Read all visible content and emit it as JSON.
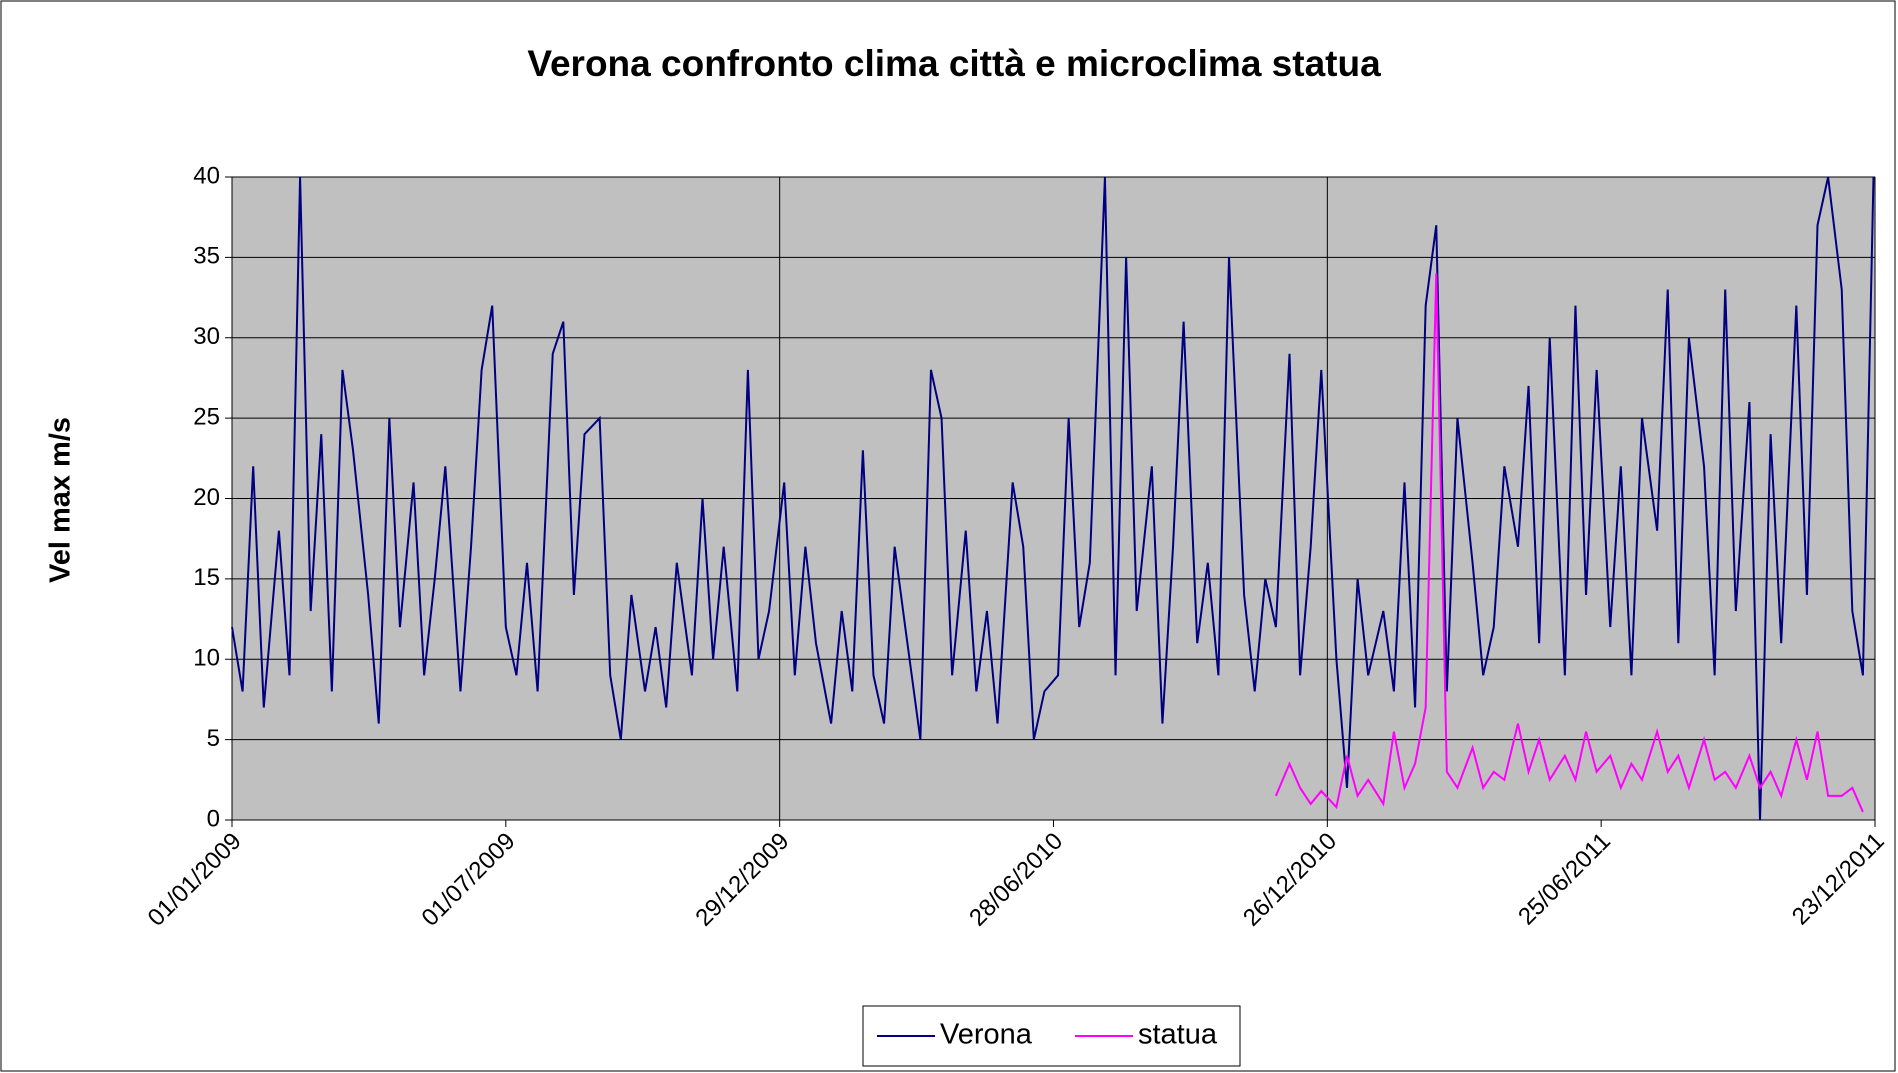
{
  "chart_data": {
    "type": "line",
    "title": "Verona confronto clima città e microclima statua",
    "y_label": "Vel max m/s",
    "xlim": [
      "01/01/2009",
      "23/12/2011"
    ],
    "xticks": [
      "01/01/2009",
      "01/07/2009",
      "29/12/2009",
      "28/06/2010",
      "26/12/2010",
      "25/06/2011",
      "23/12/2011"
    ],
    "ylim": [
      0,
      40
    ],
    "yticks": [
      0,
      5,
      10,
      15,
      20,
      25,
      30,
      35,
      40
    ],
    "grid": true,
    "legend": "bottom",
    "series": [
      {
        "name": "Verona",
        "color": "#000080",
        "x": [
          "01/01/2009",
          "08/01/2009",
          "15/01/2009",
          "22/01/2009",
          "01/02/2009",
          "08/02/2009",
          "15/02/2009",
          "22/02/2009",
          "01/03/2009",
          "08/03/2009",
          "15/03/2009",
          "22/03/2009",
          "01/04/2009",
          "08/04/2009",
          "15/04/2009",
          "22/04/2009",
          "01/05/2009",
          "08/05/2009",
          "15/05/2009",
          "22/05/2009",
          "01/06/2009",
          "08/06/2009",
          "15/06/2009",
          "22/06/2009",
          "01/07/2009",
          "08/07/2009",
          "15/07/2009",
          "22/07/2009",
          "01/08/2009",
          "08/08/2009",
          "15/08/2009",
          "22/08/2009",
          "01/09/2009",
          "08/09/2009",
          "15/09/2009",
          "22/09/2009",
          "01/10/2009",
          "08/10/2009",
          "15/10/2009",
          "22/10/2009",
          "01/11/2009",
          "08/11/2009",
          "15/11/2009",
          "22/11/2009",
          "01/12/2009",
          "08/12/2009",
          "15/12/2009",
          "22/12/2009",
          "01/01/2010",
          "08/01/2010",
          "15/01/2010",
          "22/01/2010",
          "01/02/2010",
          "08/02/2010",
          "15/02/2010",
          "22/02/2010",
          "01/03/2010",
          "08/03/2010",
          "15/03/2010",
          "22/03/2010",
          "01/04/2010",
          "08/04/2010",
          "15/04/2010",
          "22/04/2010",
          "01/05/2010",
          "08/05/2010",
          "15/05/2010",
          "22/05/2010",
          "01/06/2010",
          "08/06/2010",
          "15/06/2010",
          "22/06/2010",
          "01/07/2010",
          "08/07/2010",
          "15/07/2010",
          "22/07/2010",
          "01/08/2010",
          "08/08/2010",
          "15/08/2010",
          "22/08/2010",
          "01/09/2010",
          "08/09/2010",
          "15/09/2010",
          "22/09/2010",
          "01/10/2010",
          "08/10/2010",
          "15/10/2010",
          "22/10/2010",
          "01/11/2010",
          "08/11/2010",
          "15/11/2010",
          "22/11/2010",
          "01/12/2010",
          "08/12/2010",
          "15/12/2010",
          "22/12/2010",
          "01/01/2011",
          "08/01/2011",
          "15/01/2011",
          "22/01/2011",
          "01/02/2011",
          "08/02/2011",
          "15/02/2011",
          "22/02/2011",
          "01/03/2011",
          "08/03/2011",
          "15/03/2011",
          "22/03/2011",
          "01/04/2011",
          "08/04/2011",
          "15/04/2011",
          "22/04/2011",
          "01/05/2011",
          "08/05/2011",
          "15/05/2011",
          "22/05/2011",
          "01/06/2011",
          "08/06/2011",
          "15/06/2011",
          "22/06/2011",
          "01/07/2011",
          "08/07/2011",
          "15/07/2011",
          "22/07/2011",
          "01/08/2011",
          "08/08/2011",
          "15/08/2011",
          "22/08/2011",
          "01/09/2011",
          "08/09/2011",
          "15/09/2011",
          "22/09/2011",
          "01/10/2011",
          "08/10/2011",
          "15/10/2011",
          "22/10/2011",
          "01/11/2011",
          "08/11/2011",
          "15/11/2011",
          "22/11/2011",
          "01/12/2011",
          "08/12/2011",
          "15/12/2011",
          "22/12/2011"
        ],
        "values": [
          12,
          8,
          22,
          7,
          18,
          9,
          40,
          13,
          24,
          8,
          28,
          23,
          14,
          6,
          25,
          12,
          21,
          9,
          15,
          22,
          8,
          17,
          28,
          32,
          12,
          9,
          16,
          8,
          29,
          31,
          14,
          24,
          25,
          9,
          5,
          14,
          8,
          12,
          7,
          16,
          9,
          20,
          10,
          17,
          8,
          28,
          10,
          13,
          21,
          9,
          17,
          11,
          6,
          13,
          8,
          23,
          9,
          6,
          17,
          12,
          5,
          28,
          25,
          9,
          18,
          8,
          13,
          6,
          21,
          17,
          5,
          8,
          9,
          25,
          12,
          16,
          40,
          9,
          35,
          13,
          22,
          6,
          17,
          31,
          11,
          16,
          9,
          35,
          14,
          8,
          15,
          12,
          29,
          9,
          17,
          28,
          10,
          2,
          15,
          9,
          13,
          8,
          21,
          7,
          32,
          37,
          8,
          25,
          16,
          9,
          12,
          22,
          17,
          27,
          11,
          30,
          9,
          32,
          14,
          28,
          12,
          22,
          9,
          25,
          18,
          33,
          11,
          30,
          22,
          9,
          33,
          13,
          26,
          0,
          24,
          11,
          32,
          14,
          37,
          40,
          33,
          13,
          9,
          40
        ]
      },
      {
        "name": "statua",
        "color": "#ff00ff",
        "x": [
          "22/11/2010",
          "01/12/2010",
          "08/12/2010",
          "15/12/2010",
          "22/12/2010",
          "01/01/2011",
          "08/01/2011",
          "15/01/2011",
          "22/01/2011",
          "01/02/2011",
          "08/02/2011",
          "15/02/2011",
          "22/02/2011",
          "01/03/2011",
          "08/03/2011",
          "15/03/2011",
          "22/03/2011",
          "01/04/2011",
          "08/04/2011",
          "15/04/2011",
          "22/04/2011",
          "01/05/2011",
          "08/05/2011",
          "15/05/2011",
          "22/05/2011",
          "01/06/2011",
          "08/06/2011",
          "15/06/2011",
          "22/06/2011",
          "01/07/2011",
          "08/07/2011",
          "15/07/2011",
          "22/07/2011",
          "01/08/2011",
          "08/08/2011",
          "15/08/2011",
          "22/08/2011",
          "01/09/2011",
          "08/09/2011",
          "15/09/2011",
          "22/09/2011",
          "01/10/2011",
          "08/10/2011",
          "15/10/2011",
          "22/10/2011",
          "01/11/2011",
          "08/11/2011",
          "15/11/2011",
          "22/11/2011",
          "01/12/2011",
          "08/12/2011",
          "15/12/2011"
        ],
        "values": [
          1.5,
          3.5,
          2,
          1,
          1.8,
          0.8,
          4,
          1.5,
          2.5,
          1,
          5.5,
          2,
          3.5,
          7,
          34,
          3,
          2,
          4.5,
          2,
          3,
          2.5,
          6,
          3,
          5,
          2.5,
          4,
          2.5,
          5.5,
          3,
          4,
          2,
          3.5,
          2.5,
          5.5,
          3,
          4,
          2,
          5,
          2.5,
          3,
          2,
          4,
          2,
          3,
          1.5,
          5,
          2.5,
          5.5,
          1.5,
          1.5,
          2,
          0.5
        ]
      }
    ]
  }
}
